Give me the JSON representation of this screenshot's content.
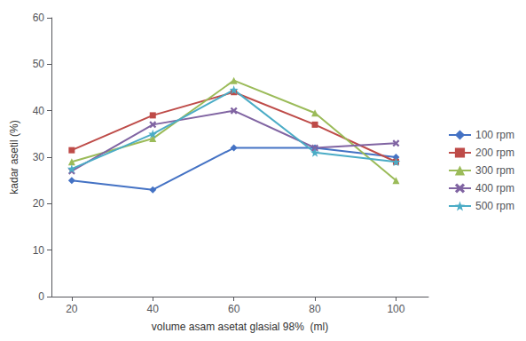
{
  "chart_data": {
    "type": "line",
    "x": [
      20,
      40,
      60,
      80,
      100
    ],
    "series": [
      {
        "name": "100 rpm",
        "values": [
          25,
          23,
          32,
          32,
          30
        ],
        "color": "#4472C4",
        "marker": "diamond"
      },
      {
        "name": "200 rpm",
        "values": [
          31.5,
          39,
          44,
          37,
          29
        ],
        "color": "#BE4B48",
        "marker": "square"
      },
      {
        "name": "300 rpm",
        "values": [
          29,
          34,
          46.5,
          39.5,
          25
        ],
        "color": "#9BBB59",
        "marker": "triangle"
      },
      {
        "name": "400 rpm",
        "values": [
          27,
          37,
          40,
          32,
          33
        ],
        "color": "#8064A2",
        "marker": "x"
      },
      {
        "name": "500 rpm",
        "values": [
          27.5,
          35,
          44.5,
          31,
          29
        ],
        "color": "#4BACC6",
        "marker": "star"
      }
    ],
    "xlabel": "volume asam asetat glasial 98%  (ml)",
    "ylabel": "kadar asetil (%)",
    "xlim": [
      15,
      108
    ],
    "ylim": [
      0,
      60
    ],
    "xticks": [
      20,
      40,
      60,
      80,
      100
    ],
    "yticks": [
      0,
      10,
      20,
      30,
      40,
      50,
      60
    ],
    "grid": false,
    "legend": "right"
  }
}
